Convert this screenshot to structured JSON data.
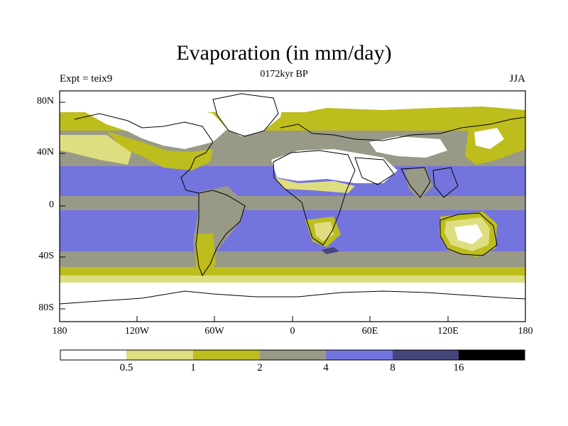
{
  "title": "Evaporation (in mm/day)",
  "subtitle": "0172kyr BP",
  "experiment_label": "Expt = teix9",
  "season_label": "JJA",
  "lat_ticks": [
    "80N",
    "40N",
    "0",
    "40S",
    "80S"
  ],
  "lon_ticks": [
    "180",
    "120W",
    "60W",
    "0",
    "60E",
    "120E",
    "180"
  ],
  "colorbar": {
    "labels": [
      "0.5",
      "1",
      "2",
      "4",
      "8",
      "16"
    ],
    "colors": [
      "#ffffff",
      "#dede80",
      "#bdbd1e",
      "#999988",
      "#7474de",
      "#45457e",
      "#000000"
    ]
  },
  "map_colors": {
    "white": "#ffffff",
    "light": "#dede80",
    "olive": "#bdbd1e",
    "gray": "#999988",
    "blue": "#7474de",
    "dark": "#45457e",
    "coast": "#000000"
  }
}
